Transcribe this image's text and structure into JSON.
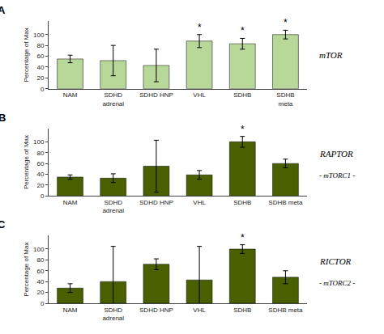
{
  "chart_data": [
    {
      "type": "bar",
      "panel": "A",
      "side_labels": [
        "mTOR"
      ],
      "categories": [
        "NAM",
        "SDHD\nadrenal",
        "SDHD HNP",
        "VHL",
        "SDHB",
        "SDHB\nmeta"
      ],
      "values": [
        55,
        52,
        43,
        88,
        83,
        100
      ],
      "errors": [
        7,
        28,
        30,
        12,
        10,
        8
      ],
      "color": "#b8d89a",
      "ylabel": "Percentage of Max",
      "ylim": [
        0,
        125
      ],
      "yticks": [
        0,
        20,
        40,
        60,
        80,
        100
      ],
      "grid": false,
      "annotations": [
        {
          "text": "*",
          "x": 3
        },
        {
          "text": "*",
          "x": 4
        },
        {
          "text": "*",
          "x": 5
        }
      ]
    },
    {
      "type": "bar",
      "panel": "B",
      "side_labels": [
        "RAPTOR",
        "- mTORC1 -"
      ],
      "categories": [
        "NAM",
        "SDHD\nadrenal",
        "SDHD HNP",
        "VHL",
        "SDHB",
        "SDHB meta"
      ],
      "values": [
        35,
        33,
        55,
        39,
        100,
        60
      ],
      "errors": [
        4,
        8,
        48,
        8,
        10,
        8
      ],
      "color": "#4a6000",
      "ylabel": "Percentage of Max",
      "ylim": [
        0,
        125
      ],
      "yticks": [
        0,
        20,
        40,
        60,
        80,
        100
      ],
      "grid": false,
      "annotations": [
        {
          "text": "*",
          "x": 4
        }
      ]
    },
    {
      "type": "bar",
      "panel": "C",
      "side_labels": [
        "RICTOR",
        "- mTORC2 -"
      ],
      "categories": [
        "NAM",
        "SDHD\nadrenal",
        "SDHD HNP",
        "VHL",
        "SDHB",
        "SDHB meta"
      ],
      "values": [
        28,
        40,
        72,
        43,
        100,
        48
      ],
      "errors": [
        8,
        65,
        10,
        62,
        8,
        12
      ],
      "color": "#4a6000",
      "ylabel": "Percentage of Max",
      "ylim": [
        0,
        125
      ],
      "yticks": [
        0,
        20,
        40,
        60,
        80,
        100
      ],
      "grid": false,
      "annotations": [
        {
          "text": "*",
          "x": 4
        }
      ]
    }
  ]
}
